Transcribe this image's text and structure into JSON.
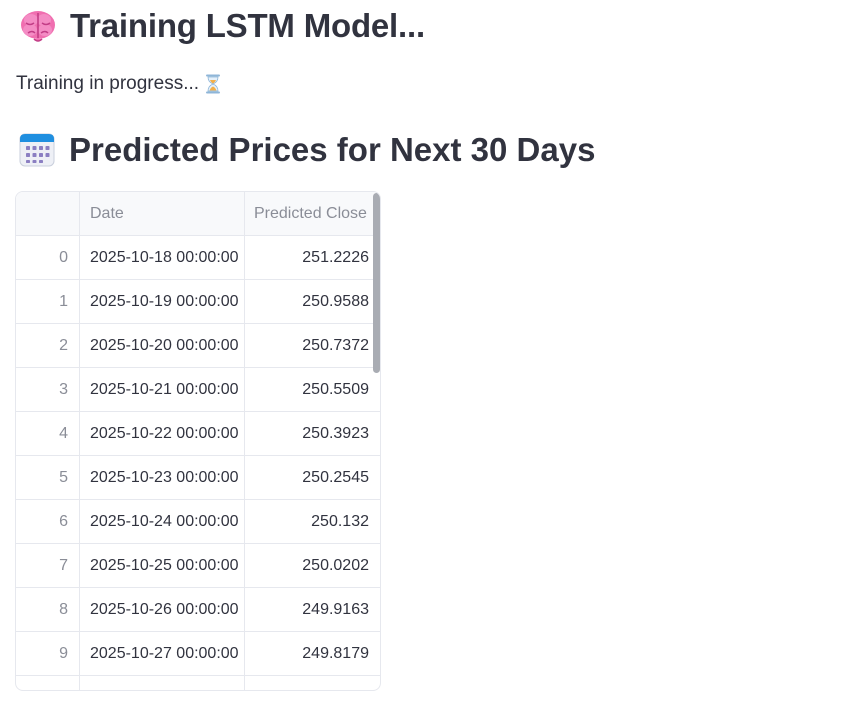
{
  "header": {
    "title": "Training LSTM Model...",
    "title_icon": "brain-icon"
  },
  "status": {
    "text": "Training in progress...",
    "icon": "hourglass-icon"
  },
  "section": {
    "title": "Predicted Prices for Next 30 Days",
    "title_icon": "calendar-icon"
  },
  "table": {
    "columns": [
      "",
      "Date",
      "Predicted Close"
    ],
    "rows": [
      {
        "index": "0",
        "date": "2025-10-18 00:00:00",
        "value": "251.2226"
      },
      {
        "index": "1",
        "date": "2025-10-19 00:00:00",
        "value": "250.9588"
      },
      {
        "index": "2",
        "date": "2025-10-20 00:00:00",
        "value": "250.7372"
      },
      {
        "index": "3",
        "date": "2025-10-21 00:00:00",
        "value": "250.5509"
      },
      {
        "index": "4",
        "date": "2025-10-22 00:00:00",
        "value": "250.3923"
      },
      {
        "index": "5",
        "date": "2025-10-23 00:00:00",
        "value": "250.2545"
      },
      {
        "index": "6",
        "date": "2025-10-24 00:00:00",
        "value": "250.132"
      },
      {
        "index": "7",
        "date": "2025-10-25 00:00:00",
        "value": "250.0202"
      },
      {
        "index": "8",
        "date": "2025-10-26 00:00:00",
        "value": "249.9163"
      },
      {
        "index": "9",
        "date": "2025-10-27 00:00:00",
        "value": "249.8179"
      },
      {
        "index": "",
        "date": "",
        "value": ""
      }
    ]
  }
}
